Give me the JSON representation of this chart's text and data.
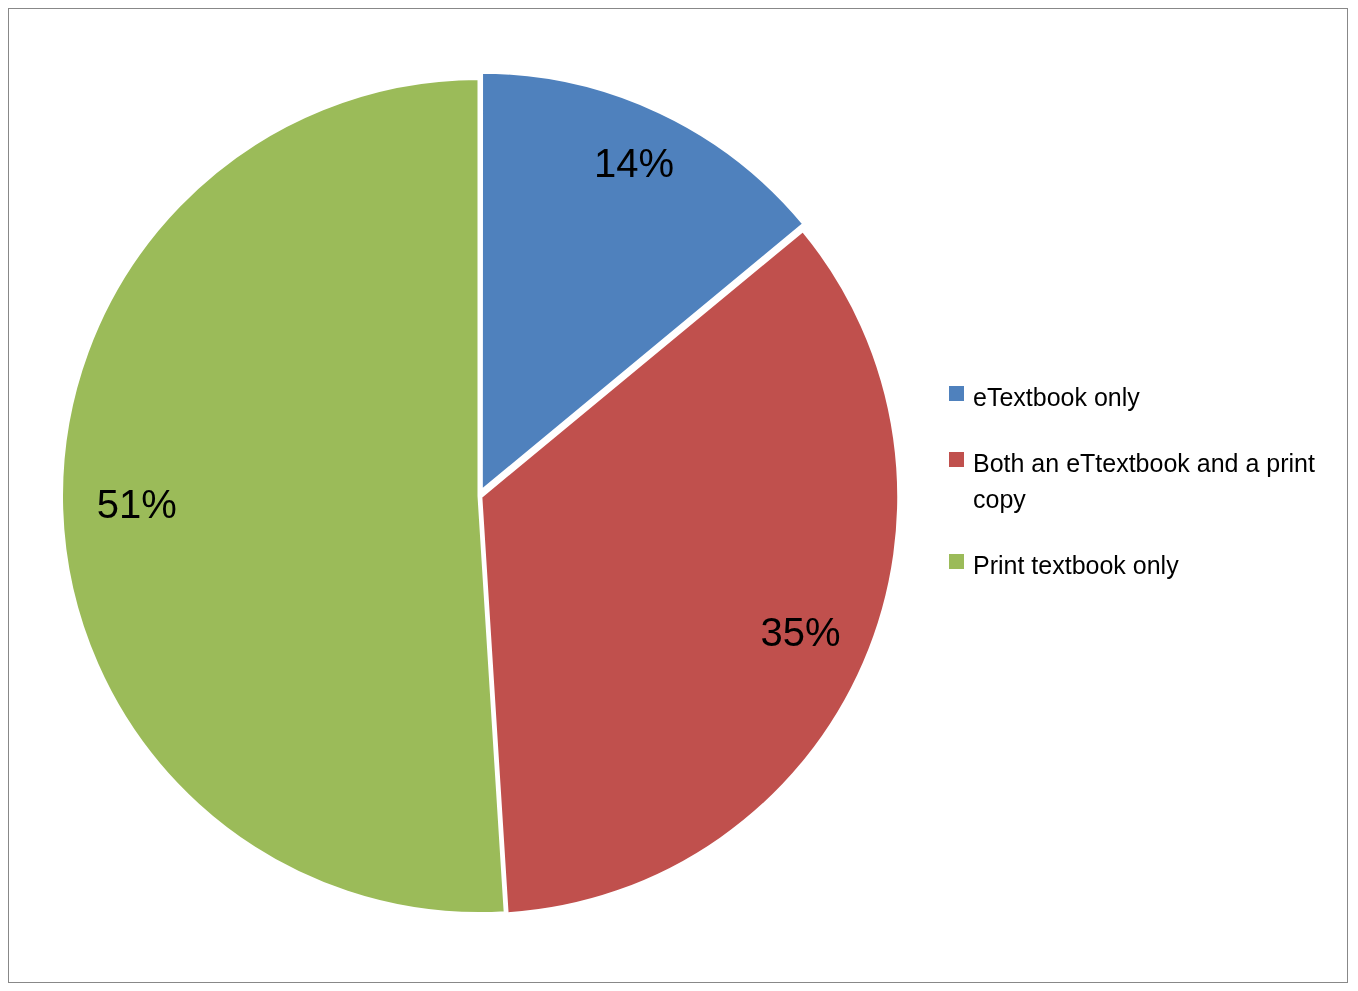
{
  "chart_data": {
    "type": "pie",
    "categories": [
      "eTextbook only",
      "Both an eTtextbook and a print copy",
      "Print textbook only"
    ],
    "values": [
      14,
      35,
      51
    ],
    "colors": [
      "#4f81bd",
      "#c0504d",
      "#9bbb59"
    ],
    "value_labels": [
      "14%",
      "35%",
      "51%"
    ],
    "legend": "right"
  }
}
